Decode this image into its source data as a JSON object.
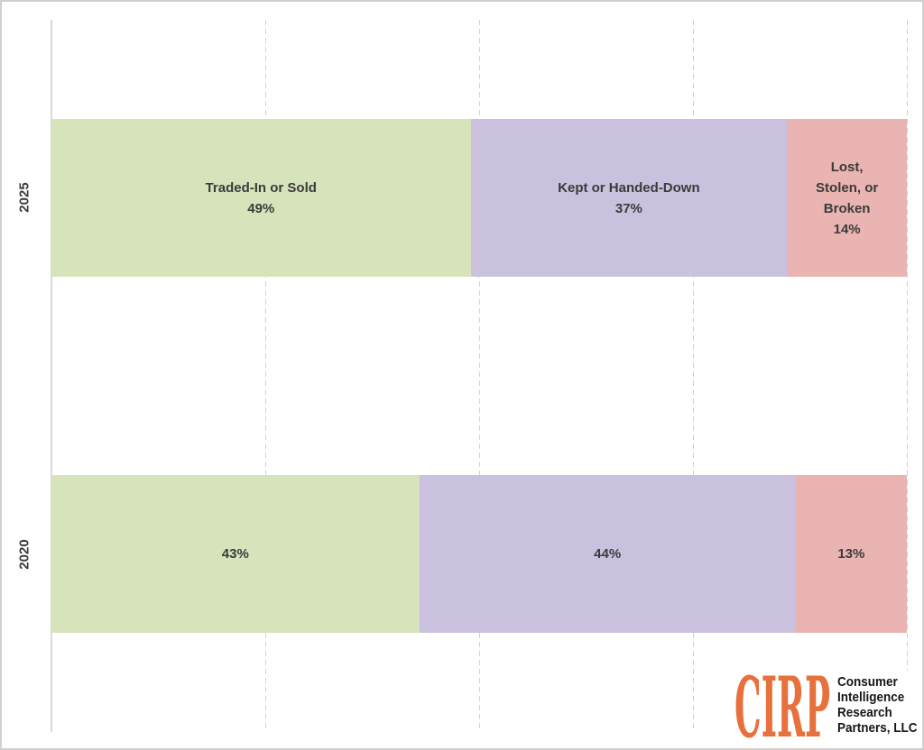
{
  "chart_data": {
    "type": "bar",
    "subtype": "horizontal-stacked",
    "title": "",
    "xlabel": "",
    "ylabel": "",
    "categories": [
      "2025",
      "2020"
    ],
    "series": [
      {
        "name": "Traded-In or Sold",
        "values": [
          49,
          43
        ],
        "color": "#d7e3ba"
      },
      {
        "name": "Kept or Handed-Down",
        "values": [
          37,
          44
        ],
        "color": "#c9c1dd"
      },
      {
        "name": "Lost, Stolen, or Broken",
        "values": [
          14,
          13
        ],
        "color": "#e9b4b1"
      }
    ],
    "segment_label_lines": [
      [
        [
          "Traded-In or Sold",
          "49%"
        ],
        [
          "Kept or Handed-Down",
          "37%"
        ],
        [
          "Lost,",
          "Stolen, or",
          "Broken",
          "14%"
        ]
      ],
      [
        [
          "43%"
        ],
        [
          "44%"
        ],
        [
          "13%"
        ]
      ]
    ],
    "xlim": [
      0,
      100
    ],
    "gridline_positions_pct": [
      25,
      50,
      75,
      100
    ],
    "grid_style": "dashed",
    "legend_position": "none",
    "label_color": "#3b3b3b"
  },
  "logo": {
    "mark": "CIRP",
    "mark_color": "#e8703c",
    "lines": [
      "Consumer",
      "Intelligence",
      "Research",
      "Partners, LLC"
    ],
    "text_color": "#161616"
  }
}
